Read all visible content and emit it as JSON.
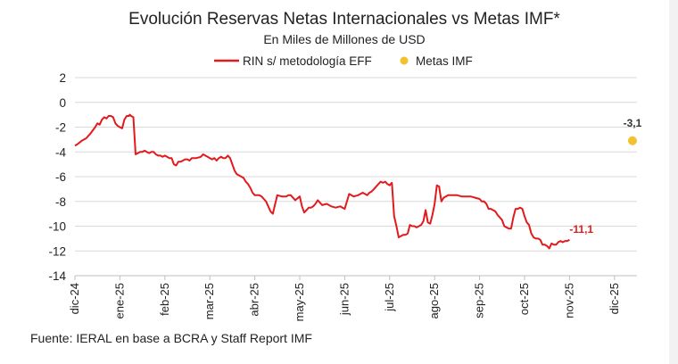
{
  "chart_data": {
    "type": "line",
    "title": "Evolución Reservas Netas Internacionales vs Metas IMF*",
    "subtitle": "En Miles de Millones de USD",
    "source": "Fuente: IERAL en base a BCRA y Staff Report IMF",
    "ylim": [
      -14,
      2
    ],
    "yticks": [
      "2",
      "0",
      "-2",
      "-4",
      "-6",
      "-8",
      "-10",
      "-12",
      "-14"
    ],
    "ytick_values": [
      2,
      0,
      -2,
      -4,
      -6,
      -8,
      -10,
      -12,
      -14
    ],
    "xlim": [
      0,
      12.5
    ],
    "xticks": [
      "dic-24",
      "ene-25",
      "feb-25",
      "mar-25",
      "abr-25",
      "may-25",
      "jun-25",
      "jul-25",
      "ago-25",
      "sep-25",
      "oct-25",
      "nov-25",
      "dic-25"
    ],
    "grid": "horizontal",
    "legend_position": "top",
    "colors": {
      "line": "#e31a1c",
      "marker": "#f2c12e",
      "grid": "#d9d9d9",
      "text": "#222222",
      "label_dark": "#333333"
    },
    "series": [
      {
        "name": "RIN s/ metodología EFF",
        "type": "line",
        "x": [
          0.0,
          0.05,
          0.15,
          0.25,
          0.35,
          0.45,
          0.5,
          0.55,
          0.6,
          0.65,
          0.7,
          0.75,
          0.8,
          0.85,
          0.9,
          0.95,
          1.0,
          1.05,
          1.1,
          1.15,
          1.2,
          1.22,
          1.25,
          1.3,
          1.35,
          1.4,
          1.45,
          1.5,
          1.55,
          1.6,
          1.65,
          1.7,
          1.75,
          1.8,
          1.85,
          1.9,
          1.95,
          2.0,
          2.05,
          2.1,
          2.15,
          2.2,
          2.25,
          2.3,
          2.35,
          2.4,
          2.45,
          2.5,
          2.55,
          2.6,
          2.7,
          2.8,
          2.85,
          2.9,
          2.95,
          3.0,
          3.05,
          3.1,
          3.15,
          3.2,
          3.25,
          3.3,
          3.35,
          3.4,
          3.45,
          3.5,
          3.55,
          3.6,
          3.65,
          3.7,
          3.75,
          3.8,
          3.85,
          3.9,
          3.95,
          4.0,
          4.05,
          4.1,
          4.15,
          4.2,
          4.25,
          4.3,
          4.35,
          4.4,
          4.5,
          4.6,
          4.7,
          4.75,
          4.8,
          4.9,
          5.0,
          5.05,
          5.1,
          5.15,
          5.2,
          5.25,
          5.3,
          5.35,
          5.4,
          5.5,
          5.6,
          5.7,
          5.8,
          5.9,
          5.95,
          6.0,
          6.1,
          6.2,
          6.3,
          6.35,
          6.4,
          6.45,
          6.5,
          6.55,
          6.6,
          6.65,
          6.7,
          6.75,
          6.8,
          6.85,
          6.9,
          6.95,
          7.0,
          7.02,
          7.05,
          7.1,
          7.15,
          7.2,
          7.25,
          7.3,
          7.35,
          7.4,
          7.45,
          7.5,
          7.55,
          7.6,
          7.65,
          7.7,
          7.75,
          7.8,
          7.85,
          7.9,
          7.95,
          8.0,
          8.05,
          8.1,
          8.15,
          8.2,
          8.25,
          8.3,
          8.4,
          8.5,
          8.6,
          8.7,
          8.8,
          8.9,
          9.0,
          9.05,
          9.1,
          9.15,
          9.2,
          9.25,
          9.3,
          9.35,
          9.4,
          9.45,
          9.5,
          9.55,
          9.6,
          9.65,
          9.7,
          9.75,
          9.8,
          9.85,
          9.9,
          9.95,
          10.0,
          10.05,
          10.1,
          10.15,
          10.2,
          10.25,
          10.3,
          10.35,
          10.4,
          10.45,
          10.5,
          10.55,
          10.6,
          10.65,
          10.7,
          10.75,
          10.8,
          10.85,
          10.9,
          10.95,
          11.0
        ],
        "y": [
          -3.5,
          -3.4,
          -3.1,
          -2.9,
          -2.5,
          -2.0,
          -1.7,
          -1.8,
          -1.4,
          -1.2,
          -1.3,
          -1.1,
          -1.1,
          -1.2,
          -1.7,
          -1.9,
          -2.0,
          -2.1,
          -1.4,
          -1.1,
          -1.1,
          -1.0,
          -1.1,
          -1.2,
          -4.2,
          -4.1,
          -4.0,
          -4.0,
          -3.9,
          -4.0,
          -4.1,
          -4.0,
          -4.0,
          -4.2,
          -4.3,
          -4.3,
          -4.4,
          -4.3,
          -4.4,
          -4.5,
          -4.5,
          -5.0,
          -5.1,
          -4.8,
          -4.8,
          -4.7,
          -4.6,
          -4.6,
          -4.7,
          -4.5,
          -4.5,
          -4.4,
          -4.2,
          -4.3,
          -4.4,
          -4.5,
          -4.6,
          -4.5,
          -4.7,
          -4.5,
          -4.4,
          -4.5,
          -4.5,
          -4.3,
          -4.5,
          -5.0,
          -5.5,
          -5.8,
          -5.9,
          -6.0,
          -6.1,
          -6.4,
          -6.6,
          -6.9,
          -7.3,
          -7.5,
          -7.5,
          -7.5,
          -7.6,
          -7.8,
          -8.0,
          -8.4,
          -8.8,
          -9.0,
          -7.5,
          -7.6,
          -7.6,
          -7.5,
          -7.5,
          -7.9,
          -7.6,
          -8.4,
          -8.9,
          -8.7,
          -8.5,
          -8.5,
          -8.4,
          -8.2,
          -7.9,
          -8.3,
          -8.2,
          -8.4,
          -8.5,
          -8.4,
          -8.5,
          -8.6,
          -7.4,
          -7.6,
          -7.5,
          -7.4,
          -7.3,
          -7.4,
          -7.5,
          -7.3,
          -7.2,
          -7.0,
          -6.8,
          -6.6,
          -6.4,
          -6.5,
          -6.4,
          -6.6,
          -6.7,
          -6.6,
          -6.5,
          -9.2,
          -10.0,
          -10.9,
          -10.8,
          -10.7,
          -10.7,
          -10.6,
          -9.9,
          -10.0,
          -10.0,
          -10.1,
          -10.0,
          -9.9,
          -9.6,
          -8.7,
          -9.7,
          -9.8,
          -9.1,
          -8.2,
          -6.7,
          -6.8,
          -8.0,
          -7.7,
          -7.6,
          -7.5,
          -7.5,
          -7.5,
          -7.6,
          -7.6,
          -7.6,
          -7.7,
          -7.8,
          -8.0,
          -8.0,
          -8.2,
          -8.6,
          -8.6,
          -8.7,
          -8.8,
          -9.1,
          -9.3,
          -9.5,
          -10.0,
          -10.1,
          -10.2,
          -10.2,
          -9.3,
          -8.6,
          -8.6,
          -8.5,
          -8.6,
          -9.2,
          -9.7,
          -9.9,
          -10.6,
          -10.9,
          -11.0,
          -11.0,
          -11.1,
          -11.5,
          -11.5,
          -11.6,
          -11.8,
          -11.4,
          -11.5,
          -11.5,
          -11.3,
          -11.2,
          -11.3,
          -11.2,
          -11.2,
          -11.1
        ],
        "end_label": "-11,1"
      },
      {
        "name": "Metas IMF",
        "type": "scatter",
        "x": [
          12.4
        ],
        "y": [
          -3.1
        ],
        "label": "-3,1"
      }
    ]
  }
}
